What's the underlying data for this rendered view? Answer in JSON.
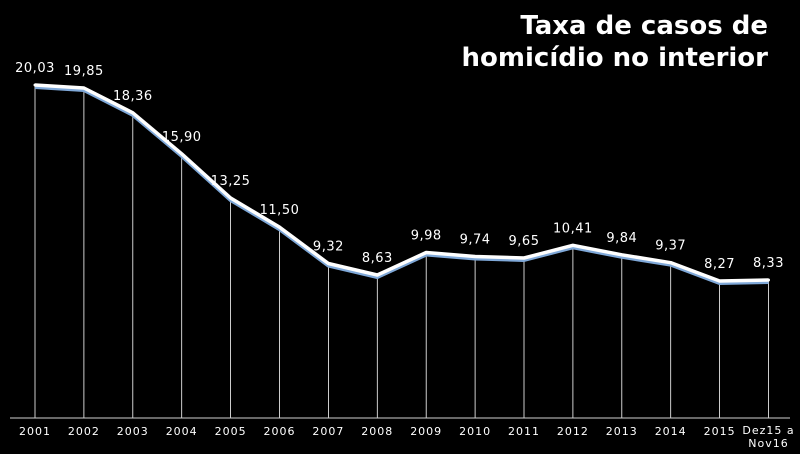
{
  "chart_data": {
    "type": "line",
    "title": [
      "Taxa de casos de",
      "homicídio no interior"
    ],
    "categories": [
      "2001",
      "2002",
      "2003",
      "2004",
      "2005",
      "2006",
      "2007",
      "2008",
      "2009",
      "2010",
      "2011",
      "2012",
      "2013",
      "2014",
      "2015",
      "Dez15 a|Nov16"
    ],
    "values": [
      20.03,
      19.85,
      18.36,
      15.9,
      13.25,
      11.5,
      9.32,
      8.63,
      9.98,
      9.74,
      9.65,
      10.41,
      9.84,
      9.37,
      8.27,
      8.33
    ],
    "labels": [
      "20,03",
      "19,85",
      "18,36",
      "15,90",
      "13,25",
      "11,50",
      "9,32",
      "8,63",
      "9,98",
      "9,74",
      "9,65",
      "10,41",
      "9,84",
      "9,37",
      "8,27",
      "8,33"
    ],
    "xlabel": "",
    "ylabel": "",
    "grid": "vertical-drop-lines",
    "colors": {
      "line": "#ffffff",
      "line_shadow": "#7fa8d8",
      "background": "#000000"
    }
  }
}
